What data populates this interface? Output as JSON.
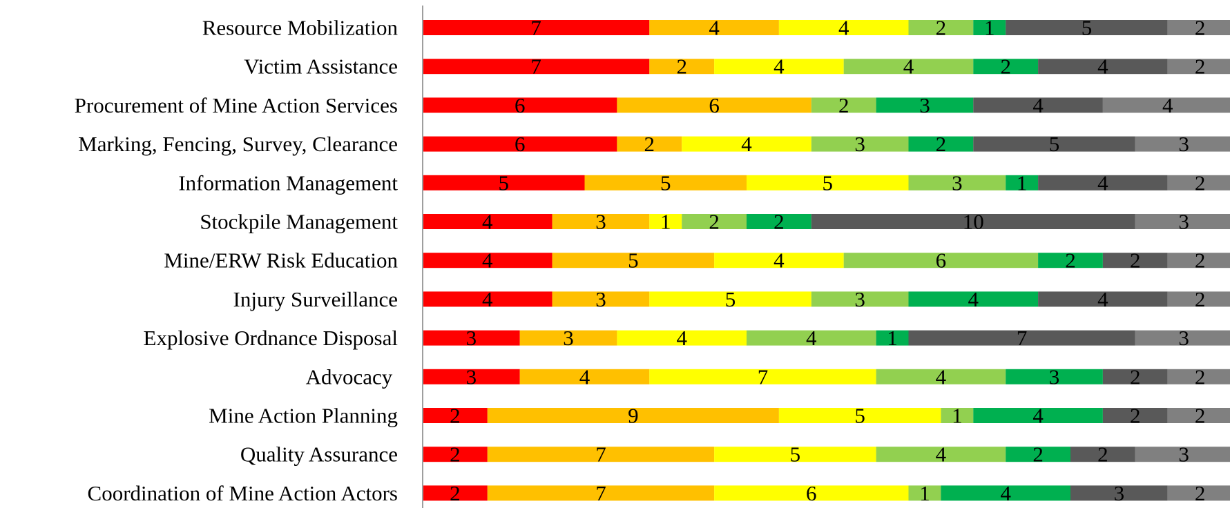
{
  "chart_data": {
    "type": "bar",
    "orientation": "horizontal",
    "stacked": true,
    "grid": false,
    "legend": "none",
    "categories": [
      "Resource Mobilization",
      "Victim Assistance",
      "Procurement of Mine Action Services",
      "Marking, Fencing, Survey, Clearance",
      "Information Management",
      "Stockpile Management",
      "Mine/ERW Risk Education",
      "Injury Surveillance",
      "Explosive Ordnance Disposal",
      "Advocacy ",
      "Mine Action Planning",
      "Quality Assurance",
      "Coordination of Mine Action Actors"
    ],
    "series": [
      {
        "color": "#ff0000",
        "values": [
          7,
          7,
          6,
          6,
          5,
          4,
          4,
          4,
          3,
          3,
          2,
          2,
          2
        ]
      },
      {
        "color": "#ffc000",
        "values": [
          4,
          2,
          6,
          2,
          5,
          3,
          5,
          3,
          3,
          4,
          9,
          7,
          7
        ]
      },
      {
        "color": "#ffff00",
        "values": [
          4,
          4,
          0,
          4,
          5,
          1,
          4,
          5,
          4,
          7,
          5,
          5,
          6
        ]
      },
      {
        "color": "#92d050",
        "values": [
          2,
          4,
          2,
          3,
          3,
          2,
          6,
          3,
          4,
          4,
          1,
          4,
          1
        ]
      },
      {
        "color": "#00b050",
        "values": [
          1,
          2,
          3,
          2,
          1,
          2,
          2,
          4,
          1,
          3,
          4,
          2,
          4
        ]
      },
      {
        "color": "#595959",
        "values": [
          5,
          4,
          4,
          5,
          4,
          10,
          2,
          4,
          7,
          2,
          2,
          2,
          3
        ]
      },
      {
        "color": "#808080",
        "values": [
          2,
          2,
          4,
          3,
          2,
          3,
          2,
          2,
          3,
          2,
          2,
          3,
          2
        ]
      }
    ]
  }
}
